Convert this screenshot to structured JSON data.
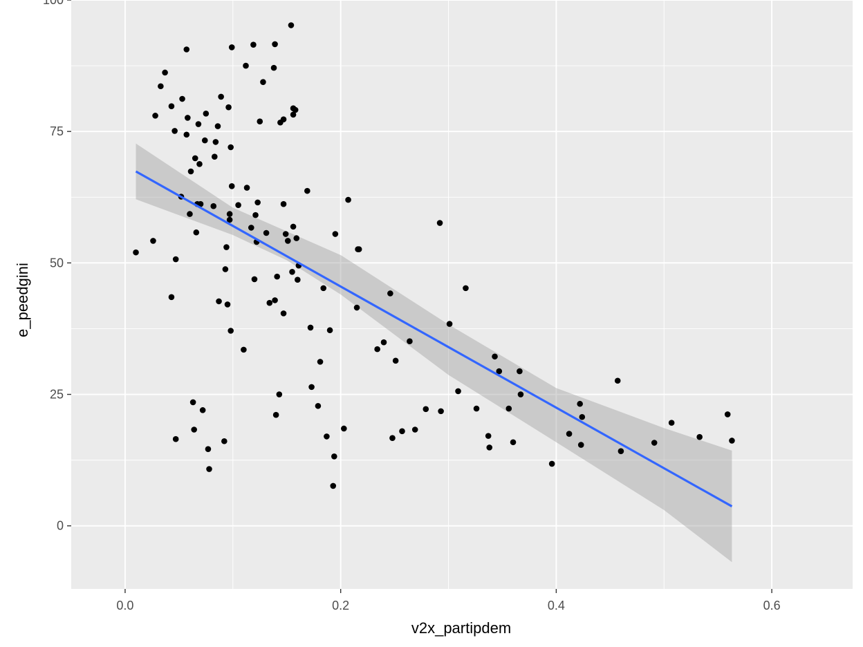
{
  "chart_data": {
    "type": "scatter",
    "title": "",
    "xlabel": "v2x_partipdem",
    "ylabel": "e_peedgini",
    "xlim": [
      -0.05,
      0.675
    ],
    "ylim": [
      -12,
      100
    ],
    "x_ticks": [
      0.0,
      0.2,
      0.4,
      0.6
    ],
    "x_tick_labels": [
      "0.0",
      "0.2",
      "0.4",
      "0.6"
    ],
    "y_ticks": [
      0,
      25,
      50,
      75,
      100
    ],
    "y_tick_labels": [
      "0",
      "25",
      "50",
      "75",
      "100"
    ],
    "grid": true,
    "legend": "none",
    "colors": {
      "panel": "#ebebeb",
      "grid_major": "#ffffff",
      "point": "#000000",
      "fit_line": "#3366ff",
      "ribbon": "#999999"
    },
    "points": [
      [
        0.01,
        52.0
      ],
      [
        0.026,
        54.2
      ],
      [
        0.028,
        78.0
      ],
      [
        0.033,
        83.6
      ],
      [
        0.037,
        86.2
      ],
      [
        0.043,
        43.5
      ],
      [
        0.043,
        79.8
      ],
      [
        0.046,
        75.1
      ],
      [
        0.047,
        50.7
      ],
      [
        0.047,
        16.5
      ],
      [
        0.052,
        62.6
      ],
      [
        0.053,
        81.2
      ],
      [
        0.057,
        74.4
      ],
      [
        0.057,
        90.6
      ],
      [
        0.058,
        77.6
      ],
      [
        0.06,
        59.3
      ],
      [
        0.061,
        67.4
      ],
      [
        0.063,
        23.5
      ],
      [
        0.064,
        18.3
      ],
      [
        0.065,
        69.9
      ],
      [
        0.066,
        55.8
      ],
      [
        0.067,
        61.2
      ],
      [
        0.068,
        76.4
      ],
      [
        0.069,
        68.8
      ],
      [
        0.07,
        61.2
      ],
      [
        0.072,
        22.0
      ],
      [
        0.074,
        73.3
      ],
      [
        0.075,
        78.4
      ],
      [
        0.077,
        14.6
      ],
      [
        0.078,
        10.8
      ],
      [
        0.082,
        60.8
      ],
      [
        0.083,
        70.2
      ],
      [
        0.084,
        73.0
      ],
      [
        0.086,
        76.0
      ],
      [
        0.087,
        42.7
      ],
      [
        0.089,
        81.6
      ],
      [
        0.092,
        16.1
      ],
      [
        0.093,
        48.8
      ],
      [
        0.094,
        53.0
      ],
      [
        0.095,
        42.1
      ],
      [
        0.096,
        79.6
      ],
      [
        0.097,
        59.3
      ],
      [
        0.097,
        58.2
      ],
      [
        0.098,
        37.1
      ],
      [
        0.098,
        72.0
      ],
      [
        0.099,
        91.0
      ],
      [
        0.099,
        64.6
      ],
      [
        0.105,
        61.0
      ],
      [
        0.11,
        33.5
      ],
      [
        0.112,
        87.5
      ],
      [
        0.113,
        64.3
      ],
      [
        0.117,
        56.7
      ],
      [
        0.119,
        91.5
      ],
      [
        0.12,
        46.9
      ],
      [
        0.121,
        59.1
      ],
      [
        0.122,
        54.0
      ],
      [
        0.123,
        61.5
      ],
      [
        0.125,
        76.9
      ],
      [
        0.128,
        84.4
      ],
      [
        0.131,
        55.7
      ],
      [
        0.134,
        42.4
      ],
      [
        0.138,
        87.1
      ],
      [
        0.139,
        91.6
      ],
      [
        0.139,
        42.9
      ],
      [
        0.14,
        21.1
      ],
      [
        0.141,
        47.4
      ],
      [
        0.143,
        25.0
      ],
      [
        0.144,
        76.7
      ],
      [
        0.147,
        77.3
      ],
      [
        0.147,
        40.4
      ],
      [
        0.147,
        61.2
      ],
      [
        0.149,
        55.5
      ],
      [
        0.151,
        54.2
      ],
      [
        0.154,
        95.2
      ],
      [
        0.155,
        48.3
      ],
      [
        0.156,
        79.4
      ],
      [
        0.156,
        78.2
      ],
      [
        0.156,
        56.9
      ],
      [
        0.158,
        79.1
      ],
      [
        0.159,
        54.7
      ],
      [
        0.16,
        46.8
      ],
      [
        0.161,
        49.5
      ],
      [
        0.169,
        63.7
      ],
      [
        0.172,
        37.7
      ],
      [
        0.173,
        26.4
      ],
      [
        0.179,
        22.8
      ],
      [
        0.181,
        31.2
      ],
      [
        0.184,
        45.2
      ],
      [
        0.187,
        17.0
      ],
      [
        0.19,
        37.2
      ],
      [
        0.193,
        7.6
      ],
      [
        0.194,
        13.2
      ],
      [
        0.195,
        55.5
      ],
      [
        0.203,
        18.5
      ],
      [
        0.207,
        62.0
      ],
      [
        0.215,
        41.5
      ],
      [
        0.216,
        52.6
      ],
      [
        0.217,
        52.6
      ],
      [
        0.234,
        33.6
      ],
      [
        0.24,
        34.9
      ],
      [
        0.246,
        44.2
      ],
      [
        0.248,
        16.7
      ],
      [
        0.251,
        31.4
      ],
      [
        0.257,
        18.0
      ],
      [
        0.264,
        35.1
      ],
      [
        0.269,
        18.3
      ],
      [
        0.279,
        22.2
      ],
      [
        0.292,
        57.6
      ],
      [
        0.293,
        21.8
      ],
      [
        0.301,
        38.4
      ],
      [
        0.309,
        25.6
      ],
      [
        0.316,
        45.2
      ],
      [
        0.326,
        22.3
      ],
      [
        0.337,
        17.1
      ],
      [
        0.338,
        14.9
      ],
      [
        0.343,
        32.2
      ],
      [
        0.347,
        29.4
      ],
      [
        0.356,
        22.3
      ],
      [
        0.36,
        15.9
      ],
      [
        0.366,
        29.4
      ],
      [
        0.367,
        25.0
      ],
      [
        0.396,
        11.8
      ],
      [
        0.412,
        17.5
      ],
      [
        0.422,
        23.2
      ],
      [
        0.423,
        15.4
      ],
      [
        0.424,
        20.7
      ],
      [
        0.457,
        27.6
      ],
      [
        0.46,
        14.2
      ],
      [
        0.491,
        15.8
      ],
      [
        0.507,
        19.6
      ],
      [
        0.533,
        16.9
      ],
      [
        0.559,
        21.2
      ],
      [
        0.563,
        16.2
      ]
    ],
    "fit_line": {
      "x": [
        0.01,
        0.563
      ],
      "y": [
        67.4,
        3.7
      ]
    },
    "confidence_band": {
      "x": [
        0.01,
        0.1,
        0.15,
        0.2,
        0.3,
        0.4,
        0.5,
        0.563
      ],
      "lower": [
        62.1,
        55.3,
        50.5,
        44.0,
        28.7,
        15.9,
        3.0,
        -6.9
      ],
      "upper": [
        72.7,
        60.5,
        56.0,
        51.5,
        38.3,
        26.2,
        18.6,
        14.3
      ]
    }
  }
}
